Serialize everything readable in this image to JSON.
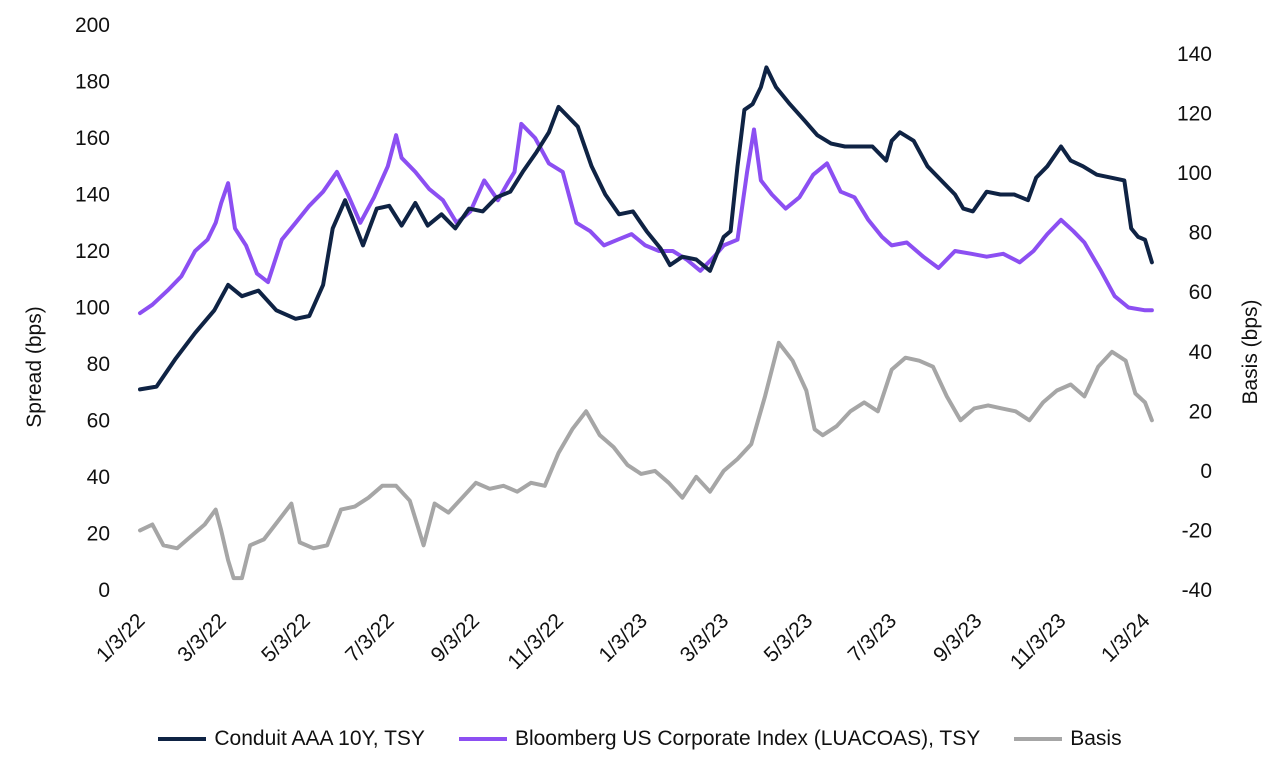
{
  "chart_data": {
    "type": "line",
    "title": "",
    "x_tick_labels": [
      "1/3/22",
      "3/3/22",
      "5/3/22",
      "7/3/22",
      "9/3/22",
      "11/3/22",
      "1/3/23",
      "3/3/23",
      "5/3/23",
      "7/3/23",
      "9/3/23",
      "11/3/23",
      "1/3/24"
    ],
    "x_tick_dates": [
      "2022-01-03",
      "2022-03-03",
      "2022-05-03",
      "2022-07-03",
      "2022-09-03",
      "2022-11-03",
      "2023-01-03",
      "2023-03-03",
      "2023-05-03",
      "2023-07-03",
      "2023-09-03",
      "2023-11-03",
      "2024-01-03"
    ],
    "ylabel_left": "Spread (bps)",
    "ylabel_right": "Basis (bps)",
    "ylim_left": [
      0,
      200
    ],
    "yticks_left": [
      0,
      20,
      40,
      60,
      80,
      100,
      120,
      140,
      160,
      180,
      200
    ],
    "ylim_right": [
      -40,
      140
    ],
    "yticks_right": [
      -40,
      -20,
      0,
      20,
      40,
      60,
      80,
      100,
      120,
      140
    ],
    "grid": false,
    "legend_position": "bottom",
    "series": [
      {
        "name": "Conduit AAA 10Y, TSY",
        "color": "#0f2344",
        "axis": "left",
        "points": [
          [
            "2022-01-03",
            71
          ],
          [
            "2022-01-15",
            72
          ],
          [
            "2022-01-29",
            82
          ],
          [
            "2022-02-12",
            91
          ],
          [
            "2022-02-26",
            99
          ],
          [
            "2022-03-08",
            108
          ],
          [
            "2022-03-18",
            104
          ],
          [
            "2022-03-30",
            106
          ],
          [
            "2022-04-12",
            99
          ],
          [
            "2022-04-26",
            96
          ],
          [
            "2022-05-06",
            97
          ],
          [
            "2022-05-16",
            108
          ],
          [
            "2022-05-23",
            128
          ],
          [
            "2022-06-01",
            138
          ],
          [
            "2022-06-06",
            132
          ],
          [
            "2022-06-14",
            122
          ],
          [
            "2022-06-24",
            135
          ],
          [
            "2022-07-03",
            136
          ],
          [
            "2022-07-12",
            129
          ],
          [
            "2022-07-22",
            137
          ],
          [
            "2022-07-31",
            129
          ],
          [
            "2022-08-10",
            133
          ],
          [
            "2022-08-20",
            128
          ],
          [
            "2022-08-30",
            135
          ],
          [
            "2022-09-09",
            134
          ],
          [
            "2022-09-19",
            139
          ],
          [
            "2022-09-29",
            141
          ],
          [
            "2022-10-08",
            148
          ],
          [
            "2022-10-18",
            155
          ],
          [
            "2022-10-27",
            162
          ],
          [
            "2022-11-03",
            171
          ],
          [
            "2022-11-09",
            168
          ],
          [
            "2022-11-17",
            164
          ],
          [
            "2022-11-27",
            150
          ],
          [
            "2022-12-07",
            140
          ],
          [
            "2022-12-17",
            133
          ],
          [
            "2022-12-27",
            134
          ],
          [
            "2023-01-06",
            127
          ],
          [
            "2023-01-16",
            121
          ],
          [
            "2023-01-23",
            115
          ],
          [
            "2023-02-01",
            118
          ],
          [
            "2023-02-11",
            117
          ],
          [
            "2023-02-21",
            113
          ],
          [
            "2023-03-03",
            125
          ],
          [
            "2023-03-08",
            127
          ],
          [
            "2023-03-13",
            150
          ],
          [
            "2023-03-18",
            170
          ],
          [
            "2023-03-24",
            172
          ],
          [
            "2023-03-30",
            178
          ],
          [
            "2023-04-03",
            185
          ],
          [
            "2023-04-10",
            178
          ],
          [
            "2023-04-20",
            172
          ],
          [
            "2023-05-01",
            166
          ],
          [
            "2023-05-10",
            161
          ],
          [
            "2023-05-20",
            158
          ],
          [
            "2023-05-30",
            157
          ],
          [
            "2023-06-09",
            157
          ],
          [
            "2023-06-19",
            157
          ],
          [
            "2023-06-29",
            152
          ],
          [
            "2023-07-03",
            159
          ],
          [
            "2023-07-09",
            162
          ],
          [
            "2023-07-19",
            159
          ],
          [
            "2023-07-29",
            150
          ],
          [
            "2023-08-08",
            145
          ],
          [
            "2023-08-18",
            140
          ],
          [
            "2023-08-24",
            135
          ],
          [
            "2023-08-31",
            134
          ],
          [
            "2023-09-10",
            141
          ],
          [
            "2023-09-20",
            140
          ],
          [
            "2023-09-30",
            140
          ],
          [
            "2023-10-10",
            138
          ],
          [
            "2023-10-16",
            146
          ],
          [
            "2023-10-24",
            150
          ],
          [
            "2023-11-03",
            157
          ],
          [
            "2023-11-10",
            152
          ],
          [
            "2023-11-19",
            150
          ],
          [
            "2023-11-29",
            147
          ],
          [
            "2023-12-09",
            146
          ],
          [
            "2023-12-19",
            145
          ],
          [
            "2023-12-24",
            128
          ],
          [
            "2023-12-29",
            125
          ],
          [
            "2024-01-03",
            124
          ],
          [
            "2024-01-08",
            116
          ]
        ]
      },
      {
        "name": "Bloomberg US Corporate Index (LUACOAS), TSY",
        "color": "#8c4ff2",
        "axis": "left",
        "points": [
          [
            "2022-01-03",
            98
          ],
          [
            "2022-01-12",
            101
          ],
          [
            "2022-01-23",
            106
          ],
          [
            "2022-02-02",
            111
          ],
          [
            "2022-02-12",
            120
          ],
          [
            "2022-02-21",
            124
          ],
          [
            "2022-02-27",
            130
          ],
          [
            "2022-03-03",
            137
          ],
          [
            "2022-03-08",
            144
          ],
          [
            "2022-03-13",
            128
          ],
          [
            "2022-03-21",
            122
          ],
          [
            "2022-03-29",
            112
          ],
          [
            "2022-04-06",
            109
          ],
          [
            "2022-04-16",
            124
          ],
          [
            "2022-04-26",
            130
          ],
          [
            "2022-05-06",
            136
          ],
          [
            "2022-05-16",
            141
          ],
          [
            "2022-05-26",
            148
          ],
          [
            "2022-06-03",
            140
          ],
          [
            "2022-06-12",
            130
          ],
          [
            "2022-06-22",
            139
          ],
          [
            "2022-07-02",
            150
          ],
          [
            "2022-07-08",
            161
          ],
          [
            "2022-07-12",
            153
          ],
          [
            "2022-07-22",
            148
          ],
          [
            "2022-08-01",
            142
          ],
          [
            "2022-08-11",
            138
          ],
          [
            "2022-08-21",
            130
          ],
          [
            "2022-08-31",
            134
          ],
          [
            "2022-09-10",
            145
          ],
          [
            "2022-09-20",
            138
          ],
          [
            "2022-09-27",
            144
          ],
          [
            "2022-10-02",
            148
          ],
          [
            "2022-10-07",
            165
          ],
          [
            "2022-10-17",
            160
          ],
          [
            "2022-10-27",
            151
          ],
          [
            "2022-11-06",
            148
          ],
          [
            "2022-11-16",
            130
          ],
          [
            "2022-11-26",
            127
          ],
          [
            "2022-12-06",
            122
          ],
          [
            "2022-12-16",
            124
          ],
          [
            "2022-12-26",
            126
          ],
          [
            "2023-01-05",
            122
          ],
          [
            "2023-01-15",
            120
          ],
          [
            "2023-01-25",
            120
          ],
          [
            "2023-02-04",
            117
          ],
          [
            "2023-02-14",
            113
          ],
          [
            "2023-02-24",
            118
          ],
          [
            "2023-03-03",
            122
          ],
          [
            "2023-03-13",
            124
          ],
          [
            "2023-03-20",
            148
          ],
          [
            "2023-03-25",
            163
          ],
          [
            "2023-03-30",
            145
          ],
          [
            "2023-04-07",
            140
          ],
          [
            "2023-04-17",
            135
          ],
          [
            "2023-04-27",
            139
          ],
          [
            "2023-05-07",
            147
          ],
          [
            "2023-05-17",
            151
          ],
          [
            "2023-05-27",
            141
          ],
          [
            "2023-06-06",
            139
          ],
          [
            "2023-06-16",
            131
          ],
          [
            "2023-06-26",
            125
          ],
          [
            "2023-07-03",
            122
          ],
          [
            "2023-07-14",
            123
          ],
          [
            "2023-07-26",
            118
          ],
          [
            "2023-08-06",
            114
          ],
          [
            "2023-08-18",
            120
          ],
          [
            "2023-08-30",
            119
          ],
          [
            "2023-09-10",
            118
          ],
          [
            "2023-09-22",
            119
          ],
          [
            "2023-10-04",
            116
          ],
          [
            "2023-10-14",
            120
          ],
          [
            "2023-10-24",
            126
          ],
          [
            "2023-11-03",
            131
          ],
          [
            "2023-11-12",
            127
          ],
          [
            "2023-11-20",
            123
          ],
          [
            "2023-12-02",
            113
          ],
          [
            "2023-12-12",
            104
          ],
          [
            "2023-12-22",
            100
          ],
          [
            "2024-01-03",
            99
          ],
          [
            "2024-01-08",
            99
          ]
        ]
      },
      {
        "name": "Basis",
        "color": "#a6a6a6",
        "axis": "right",
        "points": [
          [
            "2022-01-03",
            -20
          ],
          [
            "2022-01-12",
            -18
          ],
          [
            "2022-01-20",
            -25
          ],
          [
            "2022-01-30",
            -26
          ],
          [
            "2022-02-09",
            -22
          ],
          [
            "2022-02-19",
            -18
          ],
          [
            "2022-02-27",
            -13
          ],
          [
            "2022-03-03",
            -20
          ],
          [
            "2022-03-08",
            -30
          ],
          [
            "2022-03-12",
            -36
          ],
          [
            "2022-03-18",
            -36
          ],
          [
            "2022-03-24",
            -25
          ],
          [
            "2022-04-03",
            -23
          ],
          [
            "2022-04-13",
            -17
          ],
          [
            "2022-04-23",
            -11
          ],
          [
            "2022-04-29",
            -24
          ],
          [
            "2022-05-09",
            -26
          ],
          [
            "2022-05-19",
            -25
          ],
          [
            "2022-05-29",
            -13
          ],
          [
            "2022-06-08",
            -12
          ],
          [
            "2022-06-18",
            -9
          ],
          [
            "2022-06-28",
            -5
          ],
          [
            "2022-07-08",
            -5
          ],
          [
            "2022-07-18",
            -10
          ],
          [
            "2022-07-28",
            -25
          ],
          [
            "2022-08-05",
            -11
          ],
          [
            "2022-08-15",
            -14
          ],
          [
            "2022-08-25",
            -9
          ],
          [
            "2022-09-04",
            -4
          ],
          [
            "2022-09-14",
            -6
          ],
          [
            "2022-09-24",
            -5
          ],
          [
            "2022-10-04",
            -7
          ],
          [
            "2022-10-14",
            -4
          ],
          [
            "2022-10-24",
            -5
          ],
          [
            "2022-11-03",
            6
          ],
          [
            "2022-11-13",
            14
          ],
          [
            "2022-11-23",
            20
          ],
          [
            "2022-12-03",
            12
          ],
          [
            "2022-12-13",
            8
          ],
          [
            "2022-12-23",
            2
          ],
          [
            "2023-01-02",
            -1
          ],
          [
            "2023-01-12",
            0
          ],
          [
            "2023-01-22",
            -4
          ],
          [
            "2023-02-01",
            -9
          ],
          [
            "2023-02-11",
            -2
          ],
          [
            "2023-02-21",
            -7
          ],
          [
            "2023-03-03",
            0
          ],
          [
            "2023-03-13",
            4
          ],
          [
            "2023-03-23",
            9
          ],
          [
            "2023-04-02",
            25
          ],
          [
            "2023-04-12",
            43
          ],
          [
            "2023-04-22",
            37
          ],
          [
            "2023-05-02",
            27
          ],
          [
            "2023-05-08",
            14
          ],
          [
            "2023-05-14",
            12
          ],
          [
            "2023-05-24",
            15
          ],
          [
            "2023-06-03",
            20
          ],
          [
            "2023-06-13",
            23
          ],
          [
            "2023-06-23",
            20
          ],
          [
            "2023-07-03",
            34
          ],
          [
            "2023-07-13",
            38
          ],
          [
            "2023-07-23",
            37
          ],
          [
            "2023-08-02",
            35
          ],
          [
            "2023-08-12",
            25
          ],
          [
            "2023-08-22",
            17
          ],
          [
            "2023-09-01",
            21
          ],
          [
            "2023-09-11",
            22
          ],
          [
            "2023-09-21",
            21
          ],
          [
            "2023-10-01",
            20
          ],
          [
            "2023-10-11",
            17
          ],
          [
            "2023-10-21",
            23
          ],
          [
            "2023-10-31",
            27
          ],
          [
            "2023-11-10",
            29
          ],
          [
            "2023-11-20",
            25
          ],
          [
            "2023-11-30",
            35
          ],
          [
            "2023-12-10",
            40
          ],
          [
            "2023-12-20",
            37
          ],
          [
            "2023-12-27",
            26
          ],
          [
            "2024-01-03",
            23
          ],
          [
            "2024-01-08",
            17
          ]
        ]
      }
    ]
  }
}
